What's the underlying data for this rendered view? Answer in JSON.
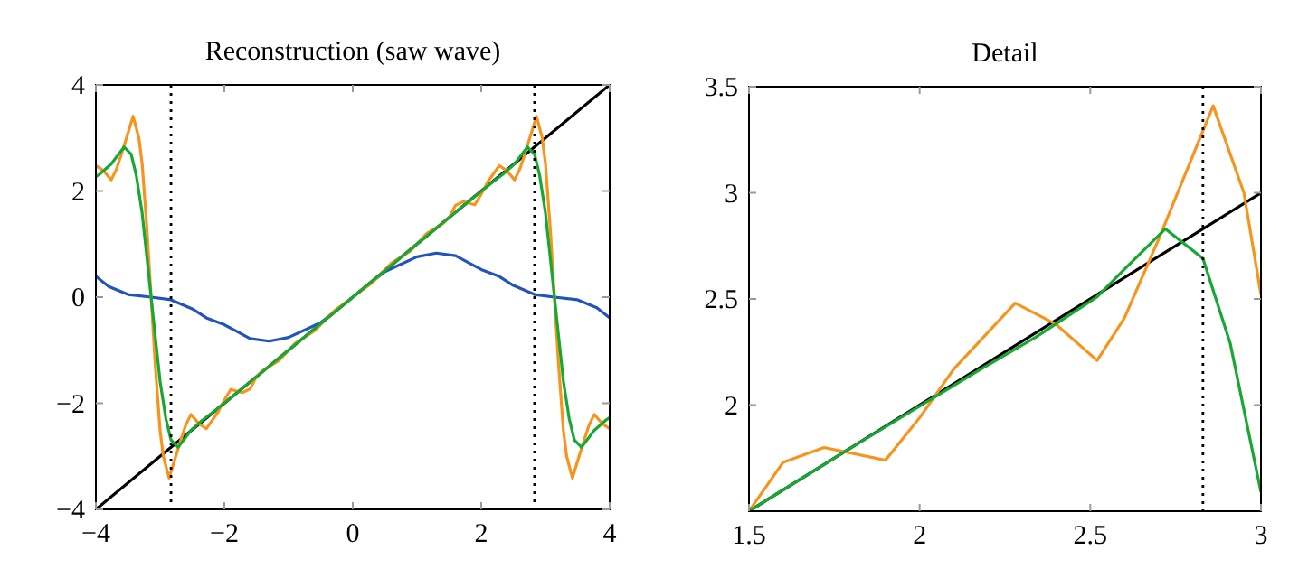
{
  "chart_data": [
    {
      "type": "line",
      "title": "Reconstruction (saw wave)",
      "xlim": [
        -4,
        4
      ],
      "ylim": [
        -4,
        4
      ],
      "xticks": [
        {
          "value": -4,
          "label": "−4"
        },
        {
          "value": -2,
          "label": "−2"
        },
        0,
        2,
        4
      ],
      "yticks": [
        {
          "value": -4,
          "label": "−4"
        },
        {
          "value": -2,
          "label": "−2"
        },
        0,
        2,
        4
      ],
      "series": [
        {
          "color": "#000000",
          "x": [
            -4,
            4
          ],
          "values": [
            -4,
            4
          ]
        },
        {
          "color": "#2255bb",
          "x": [
            -4,
            -3.8,
            -3.5,
            -3.14,
            -2.83,
            -2.5,
            -2.28,
            -2,
            -1.6,
            -1.3,
            -1,
            -0.5,
            0,
            0.5,
            1,
            1.3,
            1.6,
            2,
            2.28,
            2.5,
            2.83,
            3.14,
            3.5,
            3.8,
            4
          ],
          "values": [
            0.39,
            0.2,
            0.05,
            0,
            -0.05,
            -0.22,
            -0.39,
            -0.52,
            -0.78,
            -0.83,
            -0.76,
            -0.48,
            0,
            0.48,
            0.76,
            0.83,
            0.78,
            0.52,
            0.39,
            0.22,
            0.05,
            0,
            -0.05,
            -0.2,
            -0.39
          ]
        },
        {
          "color": "#f7941d",
          "x": [
            -4,
            -3.88,
            -3.76,
            -3.68,
            -3.58,
            -3.42,
            -3.33,
            -3.28,
            -3.2,
            -3.14,
            -3.08,
            -3,
            -2.95,
            -2.86,
            -2.7,
            -2.6,
            -2.52,
            -2.4,
            -2.28,
            -2.1,
            -2,
            -1.9,
            -1.72,
            -1.6,
            -1.5,
            -1.4,
            -1.15,
            -0.9,
            -0.6,
            -0.3,
            0,
            0.3,
            0.6,
            0.9,
            1.15,
            1.4,
            1.5,
            1.6,
            1.72,
            1.9,
            2,
            2.1,
            2.28,
            2.4,
            2.52,
            2.6,
            2.7,
            2.86,
            2.95,
            3,
            3.08,
            3.14,
            3.2,
            3.28,
            3.33,
            3.42,
            3.58,
            3.68,
            3.76,
            3.88,
            4
          ],
          "values": [
            2.48,
            2.38,
            2.21,
            2.41,
            2.78,
            3.41,
            3,
            2.52,
            1.2,
            0,
            -1.2,
            -2.52,
            -3,
            -3.41,
            -2.78,
            -2.41,
            -2.21,
            -2.38,
            -2.48,
            -2.17,
            -1.94,
            -1.74,
            -1.8,
            -1.73,
            -1.5,
            -1.38,
            -1.2,
            -0.87,
            -0.64,
            -0.27,
            0,
            0.27,
            0.64,
            0.87,
            1.2,
            1.38,
            1.5,
            1.73,
            1.8,
            1.74,
            1.94,
            2.17,
            2.48,
            2.38,
            2.21,
            2.41,
            2.78,
            3.41,
            3,
            2.52,
            1.2,
            0,
            -1.2,
            -2.52,
            -3,
            -3.41,
            -2.78,
            -2.41,
            -2.21,
            -2.38,
            -2.48
          ]
        },
        {
          "color": "#16a833",
          "x": [
            -4,
            -3.94,
            -3.76,
            -3.68,
            -3.56,
            -3.45,
            -3.37,
            -3.28,
            -3.21,
            -3.14,
            -3.07,
            -3,
            -2.91,
            -2.83,
            -2.72,
            -2.6,
            -2.52,
            -2.34,
            -2.17,
            -1.8,
            -1.5,
            -1,
            -0.5,
            0,
            0.5,
            1,
            1.5,
            1.8,
            2.17,
            2.34,
            2.52,
            2.6,
            2.72,
            2.83,
            2.91,
            3,
            3.07,
            3.14,
            3.21,
            3.28,
            3.37,
            3.45,
            3.56,
            3.68,
            3.76,
            3.94,
            4
          ],
          "values": [
            2.27,
            2.32,
            2.51,
            2.64,
            2.83,
            2.69,
            2.29,
            1.59,
            0.8,
            0,
            -0.8,
            -1.59,
            -2.29,
            -2.69,
            -2.83,
            -2.64,
            -2.51,
            -2.32,
            -2.16,
            -1.8,
            -1.5,
            -1,
            -0.5,
            0,
            0.5,
            1,
            1.5,
            1.8,
            2.16,
            2.32,
            2.51,
            2.64,
            2.83,
            2.69,
            2.29,
            1.59,
            0.8,
            0,
            -0.8,
            -1.59,
            -2.29,
            -2.69,
            -2.83,
            -2.64,
            -2.51,
            -2.32,
            -2.27
          ]
        }
      ],
      "ref_lines": [
        {
          "axis": "x",
          "value": -2.83,
          "color": "#000000",
          "line_style": "dotted"
        },
        {
          "axis": "x",
          "value": 2.83,
          "color": "#000000",
          "line_style": "dotted"
        }
      ]
    },
    {
      "type": "line",
      "title": "Detail",
      "xlim": [
        1.5,
        3
      ],
      "ylim": [
        1.5,
        3.5
      ],
      "xticks": [
        1.5,
        2,
        2.5,
        3
      ],
      "yticks": [
        2,
        2.5,
        3,
        3.5
      ],
      "series": [
        {
          "color": "#000000",
          "x": [
            1.5,
            3
          ],
          "values": [
            1.5,
            3
          ]
        },
        {
          "color": "#f7941d",
          "x": [
            1.5,
            1.6,
            1.72,
            1.9,
            2,
            2.1,
            2.28,
            2.4,
            2.52,
            2.6,
            2.7,
            2.86,
            2.95,
            3
          ],
          "values": [
            1.5,
            1.73,
            1.8,
            1.74,
            1.94,
            2.17,
            2.48,
            2.38,
            2.21,
            2.41,
            2.78,
            3.41,
            3,
            2.52
          ]
        },
        {
          "color": "#16a833",
          "x": [
            1.5,
            1.8,
            2.17,
            2.34,
            2.52,
            2.6,
            2.72,
            2.83,
            2.91,
            3
          ],
          "values": [
            1.5,
            1.8,
            2.16,
            2.32,
            2.51,
            2.64,
            2.83,
            2.69,
            2.29,
            1.59
          ]
        }
      ],
      "ref_lines": [
        {
          "axis": "x",
          "value": 2.83,
          "color": "#000000",
          "line_style": "dotted"
        }
      ]
    }
  ]
}
